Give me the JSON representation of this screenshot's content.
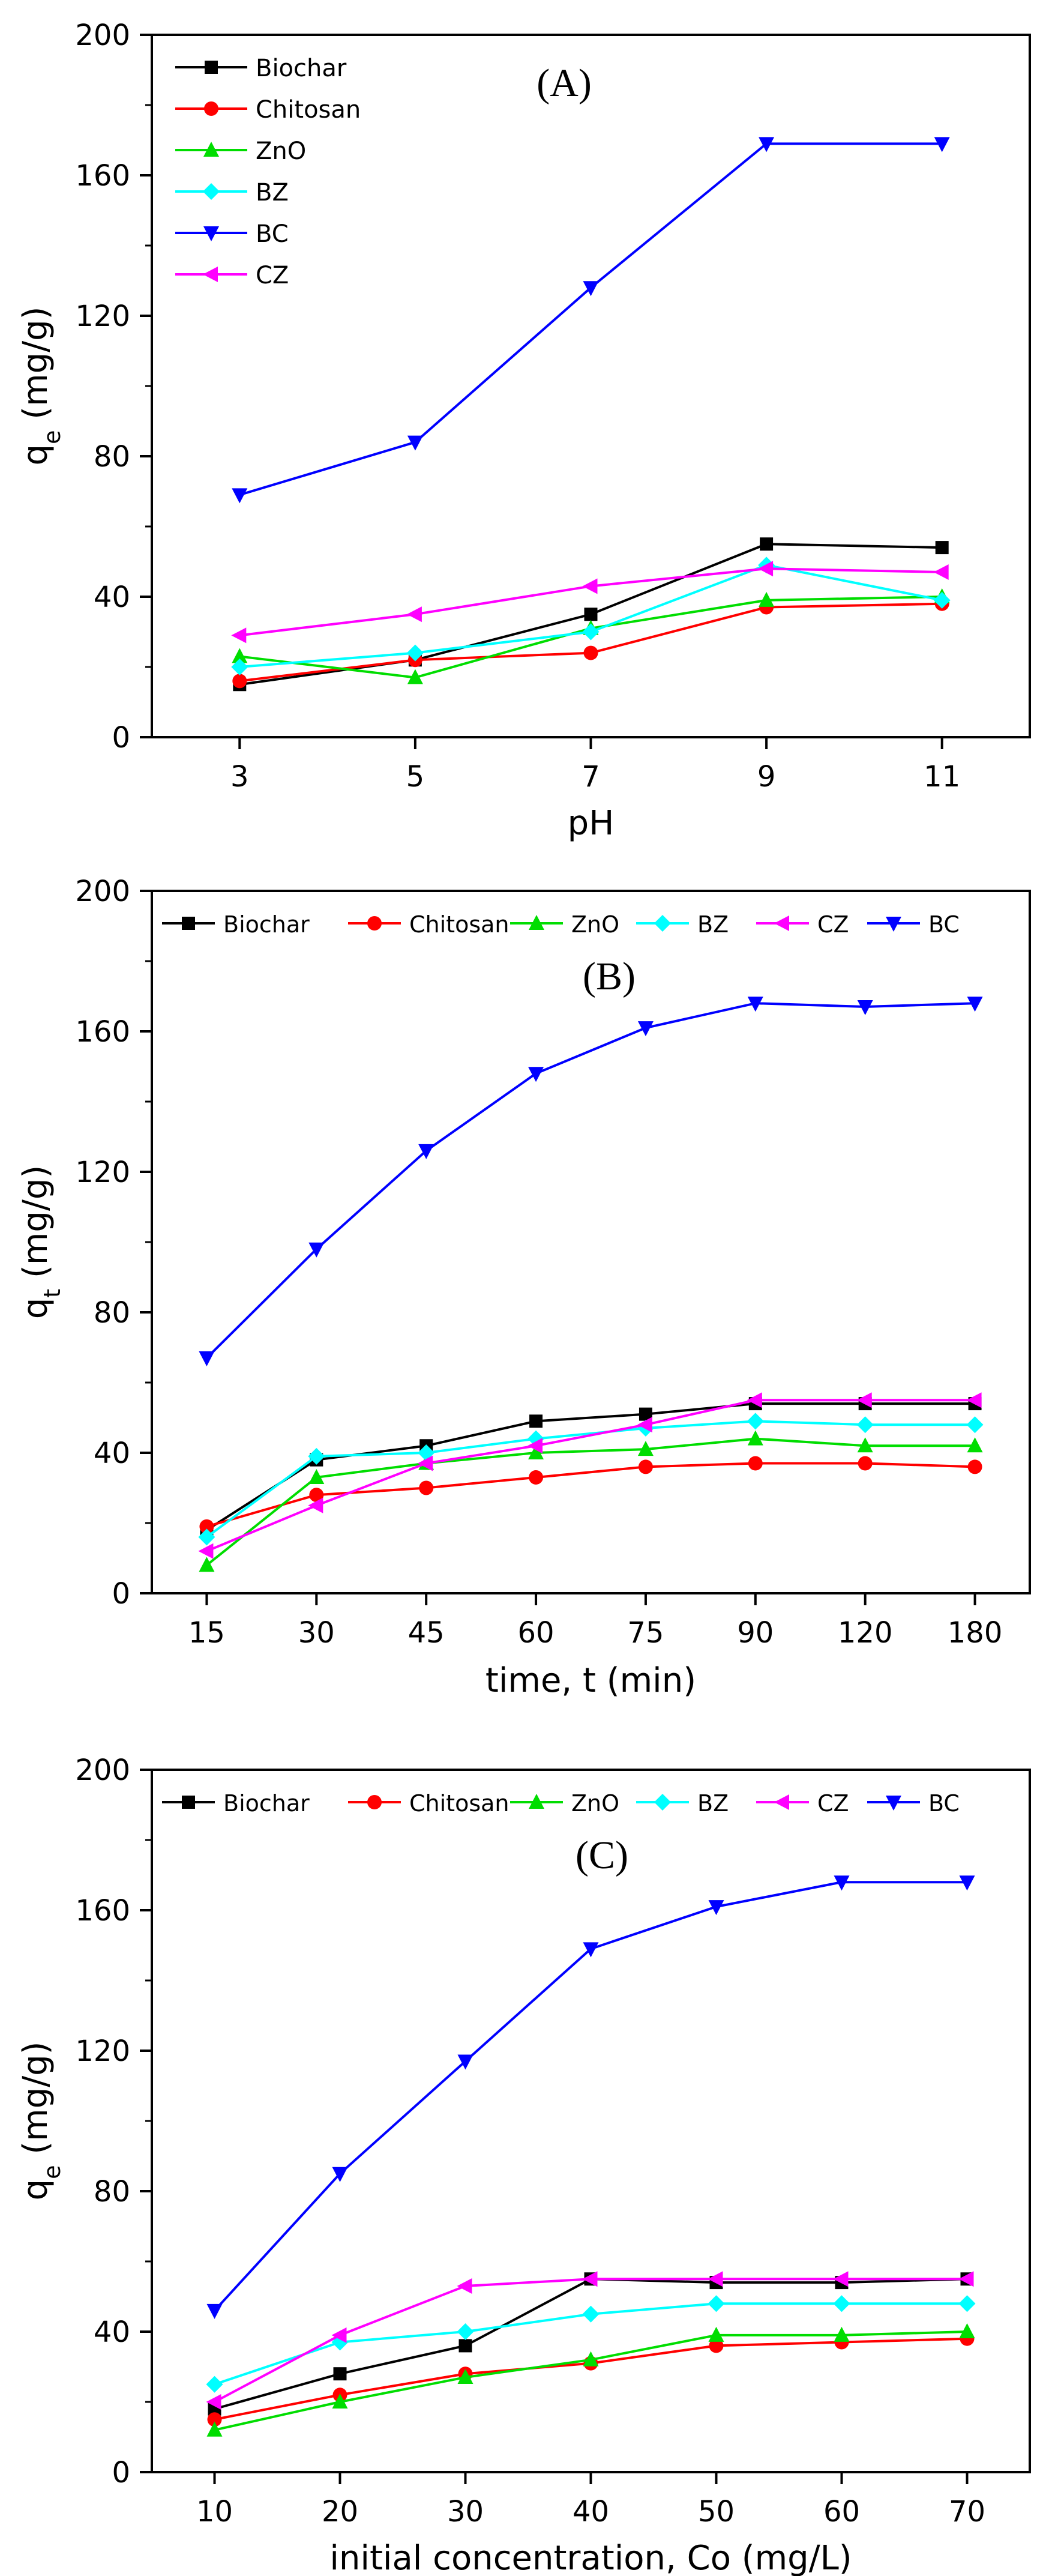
{
  "chart_data": [
    {
      "type": "line",
      "panel_label": "(A)",
      "xlabel": "pH",
      "ylabel": "q",
      "ylabel_sub": "e",
      "ylabel_unit": " (mg/g)",
      "categories": [
        "3",
        "5",
        "7",
        "9",
        "11"
      ],
      "ylim": [
        0,
        200
      ],
      "yticks": [
        "0",
        "40",
        "80",
        "120",
        "160",
        "200"
      ],
      "legend_position": "top-left",
      "legend_layout": "vertical",
      "series": [
        {
          "name": "Biochar",
          "color": "#000000",
          "marker": "square",
          "values": [
            15,
            22,
            35,
            55,
            54
          ]
        },
        {
          "name": "Chitosan",
          "color": "#ff0000",
          "marker": "circle",
          "values": [
            16,
            22,
            24,
            37,
            38
          ]
        },
        {
          "name": "ZnO",
          "color": "#00dd00",
          "marker": "triangle-up",
          "values": [
            23,
            17,
            31,
            39,
            40
          ]
        },
        {
          "name": "BZ",
          "color": "#00ffff",
          "marker": "diamond",
          "values": [
            20,
            24,
            30,
            49,
            39
          ]
        },
        {
          "name": "BC",
          "color": "#0000ff",
          "marker": "triangle-down",
          "values": [
            69,
            84,
            128,
            169,
            169
          ]
        },
        {
          "name": "CZ",
          "color": "#ff00ff",
          "marker": "triangle-left",
          "values": [
            29,
            35,
            43,
            48,
            47
          ]
        }
      ]
    },
    {
      "type": "line",
      "panel_label": "(B)",
      "xlabel": "time, t (min)",
      "ylabel": "q",
      "ylabel_sub": "t",
      "ylabel_unit": " (mg/g)",
      "categories": [
        "15",
        "30",
        "45",
        "60",
        "75",
        "90",
        "120",
        "180"
      ],
      "ylim": [
        0,
        200
      ],
      "yticks": [
        "0",
        "40",
        "80",
        "120",
        "160",
        "200"
      ],
      "legend_position": "top",
      "legend_layout": "horizontal",
      "series": [
        {
          "name": "Biochar",
          "color": "#000000",
          "marker": "square",
          "values": [
            18,
            38,
            42,
            49,
            51,
            54,
            54,
            54
          ]
        },
        {
          "name": "Chitosan",
          "color": "#ff0000",
          "marker": "circle",
          "values": [
            19,
            28,
            30,
            33,
            36,
            37,
            37,
            36
          ]
        },
        {
          "name": "ZnO",
          "color": "#00dd00",
          "marker": "triangle-up",
          "values": [
            8,
            33,
            37,
            40,
            41,
            44,
            42,
            42
          ]
        },
        {
          "name": "BZ",
          "color": "#00ffff",
          "marker": "diamond",
          "values": [
            16,
            39,
            40,
            44,
            47,
            49,
            48,
            48
          ]
        },
        {
          "name": "CZ",
          "color": "#ff00ff",
          "marker": "triangle-left",
          "values": [
            12,
            25,
            37,
            42,
            48,
            55,
            55,
            55
          ]
        },
        {
          "name": "BC",
          "color": "#0000ff",
          "marker": "triangle-down",
          "values": [
            67,
            98,
            126,
            148,
            161,
            168,
            167,
            168
          ]
        }
      ]
    },
    {
      "type": "line",
      "panel_label": "(C)",
      "xlabel": "initial concentration, Co (mg/L)",
      "ylabel": "q",
      "ylabel_sub": "e",
      "ylabel_unit": " (mg/g)",
      "categories": [
        "10",
        "20",
        "30",
        "40",
        "50",
        "60",
        "70"
      ],
      "ylim": [
        0,
        200
      ],
      "yticks": [
        "0",
        "40",
        "80",
        "120",
        "160",
        "200"
      ],
      "legend_position": "top",
      "legend_layout": "horizontal",
      "series": [
        {
          "name": "Biochar",
          "color": "#000000",
          "marker": "square",
          "values": [
            18,
            28,
            36,
            55,
            54,
            54,
            55
          ]
        },
        {
          "name": "Chitosan",
          "color": "#ff0000",
          "marker": "circle",
          "values": [
            15,
            22,
            28,
            31,
            36,
            37,
            38
          ]
        },
        {
          "name": "ZnO",
          "color": "#00dd00",
          "marker": "triangle-up",
          "values": [
            12,
            20,
            27,
            32,
            39,
            39,
            40
          ]
        },
        {
          "name": "BZ",
          "color": "#00ffff",
          "marker": "diamond",
          "values": [
            25,
            37,
            40,
            45,
            48,
            48,
            48
          ]
        },
        {
          "name": "CZ",
          "color": "#ff00ff",
          "marker": "triangle-left",
          "values": [
            20,
            39,
            53,
            55,
            55,
            55,
            55
          ]
        },
        {
          "name": "BC",
          "color": "#0000ff",
          "marker": "triangle-down",
          "values": [
            46,
            85,
            117,
            149,
            161,
            168,
            168
          ]
        }
      ]
    }
  ]
}
